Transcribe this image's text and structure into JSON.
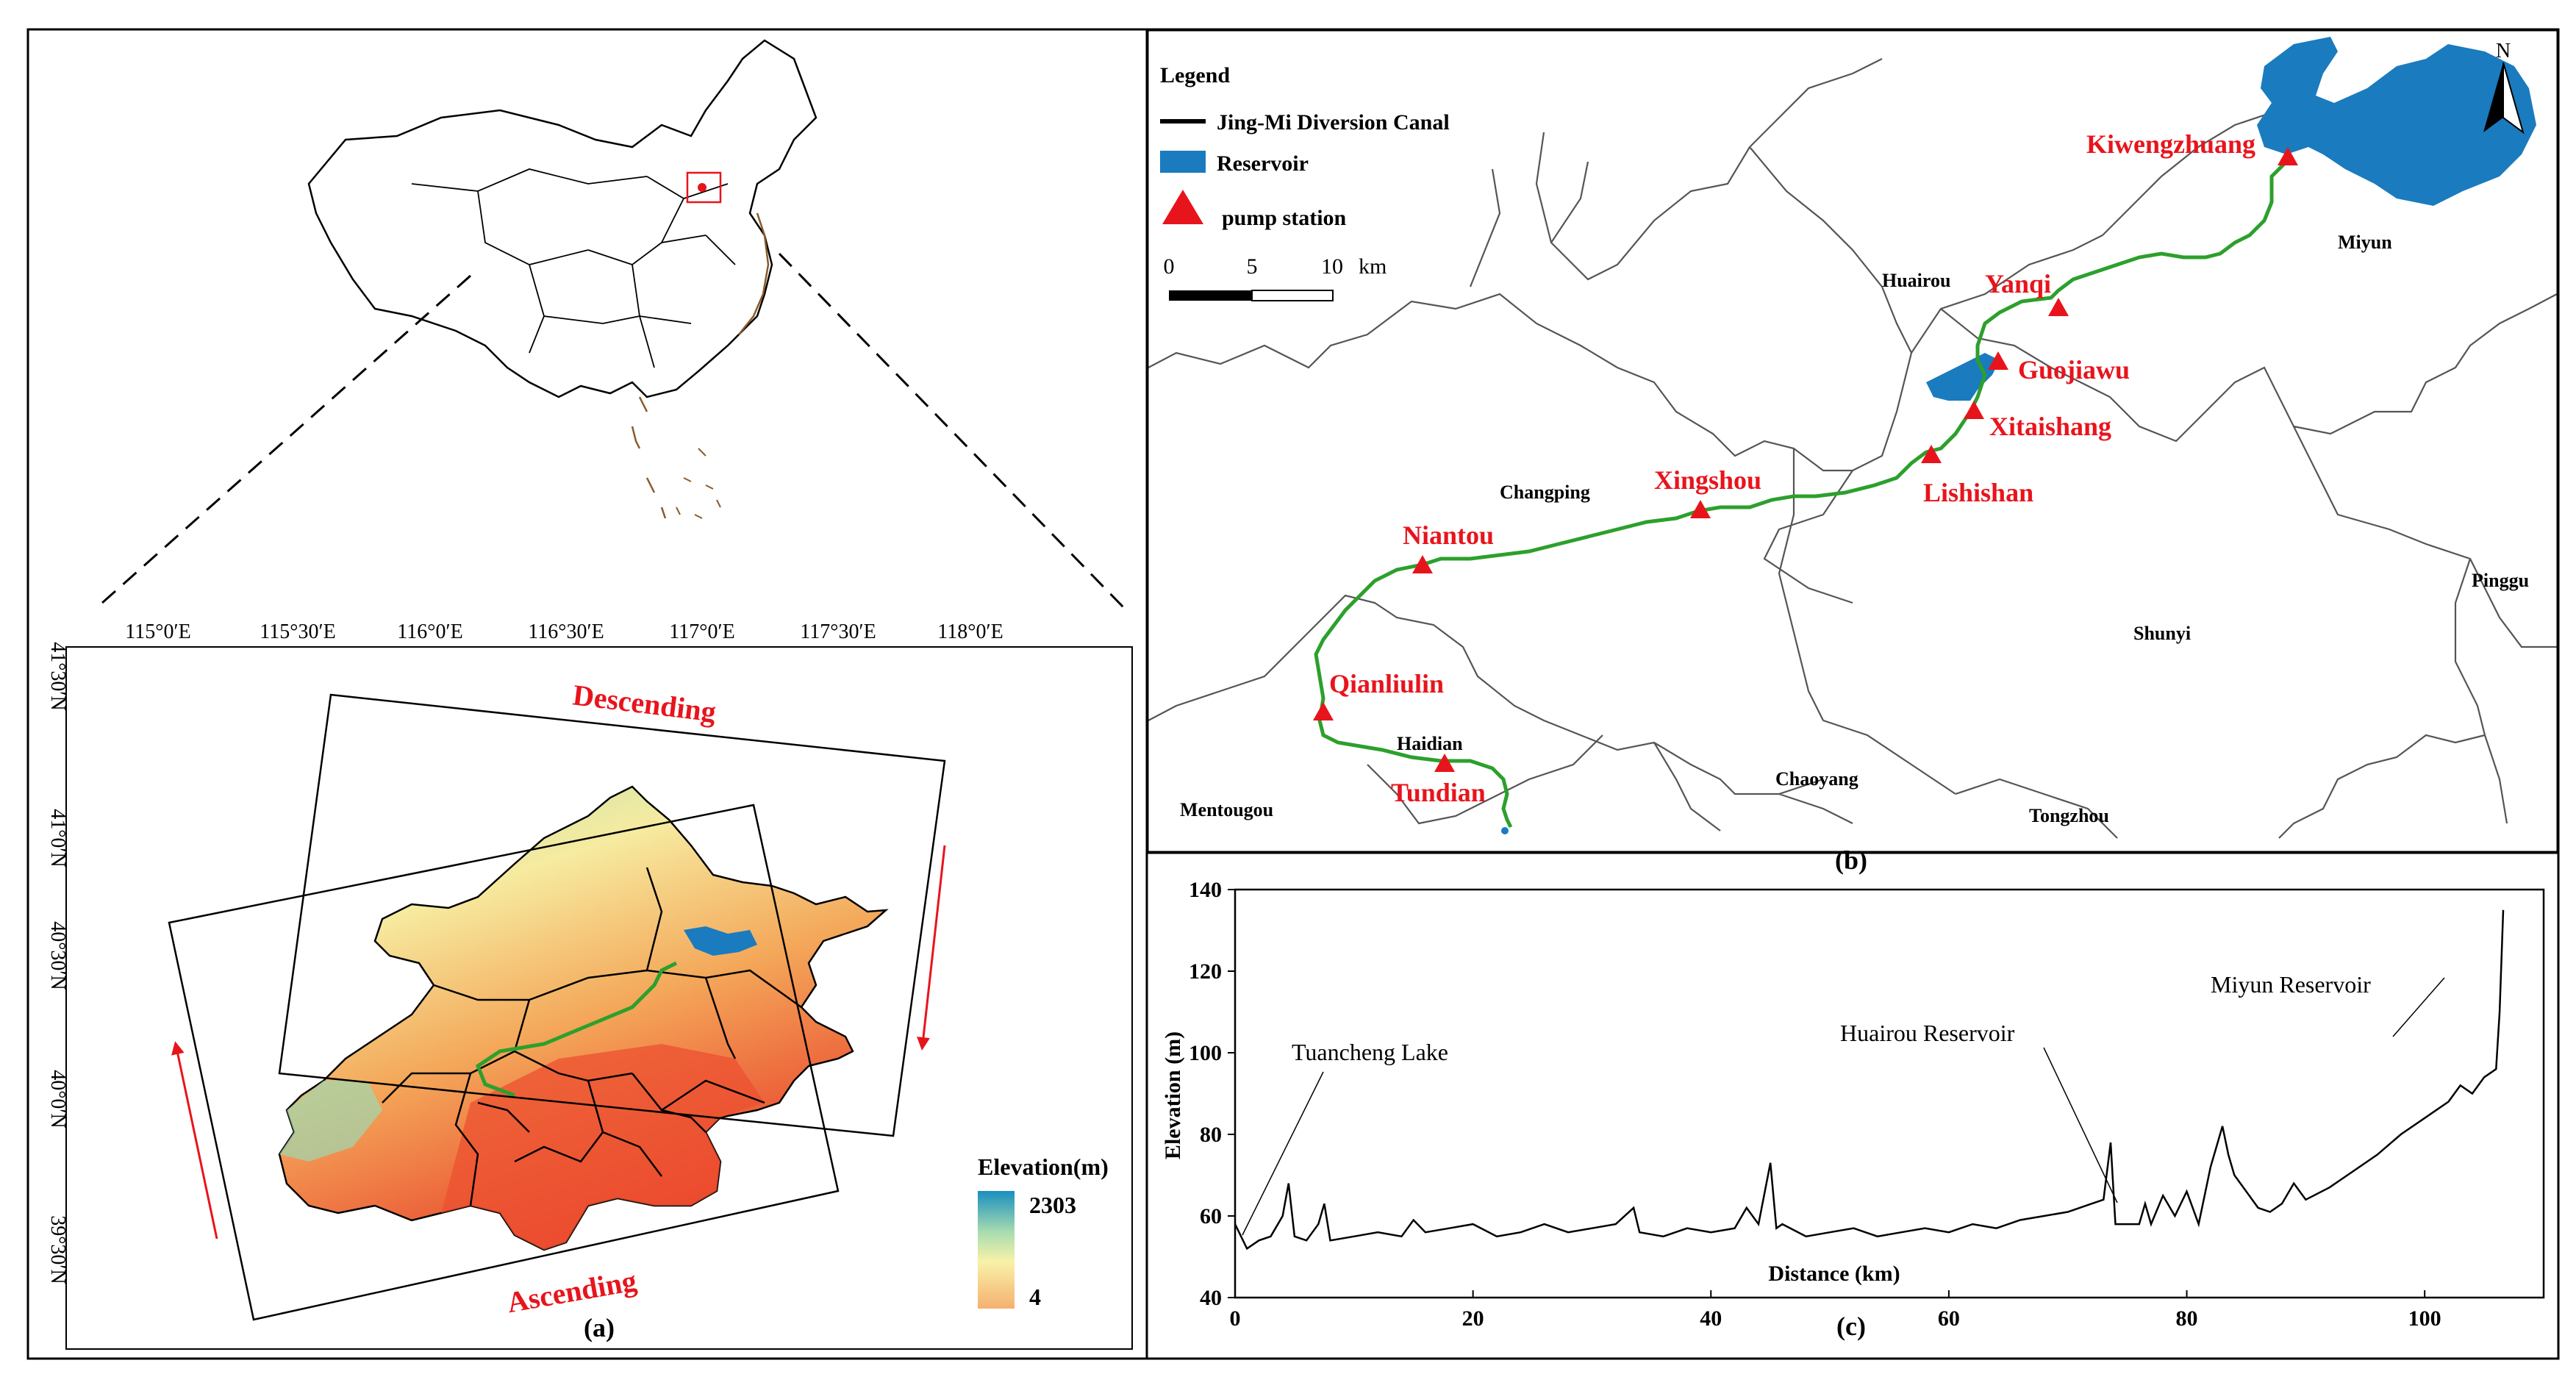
{
  "colors": {
    "canal": "#2ca02c",
    "reservoir": "#1a7bbf",
    "pump": "#e8141c",
    "label_red": "#e8141c",
    "swath_arrow": "#e8141c",
    "boundary": "#000000",
    "china_coast": "#8b5a2b",
    "elevation_high": "#1a8fbf",
    "elevation_low": "#f5b070",
    "elevation_mid": "#f8f2a8"
  },
  "panel_a": {
    "caption": "(a)",
    "lon_ticks": [
      "115°0′E",
      "115°30′E",
      "116°0′E",
      "116°30′E",
      "117°0′E",
      "117°30′E",
      "118°0′E"
    ],
    "lat_ticks": [
      "41°30′N",
      "41°0′N",
      "40°30′N",
      "40°0′N",
      "39°30′N"
    ],
    "descending_label": "Descending",
    "ascending_label": "Ascending",
    "colorbar": {
      "title": "Elevation(m)",
      "max_label": "2303",
      "min_label": "4"
    }
  },
  "panel_b": {
    "caption": "(b)",
    "legend": {
      "title": "Legend",
      "canal_label": "Jing-Mi Diversion Canal",
      "reservoir_label": "Reservoir",
      "pump_label": "pump station"
    },
    "scale_bar": {
      "ticks": [
        "0",
        "5",
        "10"
      ],
      "unit": "km"
    },
    "north_arrow_label": "N",
    "districts": [
      "Huairou",
      "Miyun",
      "Changping",
      "Shunyi",
      "Pinggu",
      "Haidian",
      "Chaoyang",
      "Mentougou",
      "Tongzhou"
    ],
    "pump_stations": [
      "Kiwengzhuang",
      "Yanqi",
      "Guojiawu",
      "Xitaishang",
      "Lishishan",
      "Xingshou",
      "Niantou",
      "Qianliulin",
      "Tundian"
    ]
  },
  "panel_c": {
    "caption": "(c)",
    "annotations": [
      "Tuancheng Lake",
      "Huairou Reservoir",
      "Miyun Reservoir"
    ]
  },
  "chart_data": {
    "type": "line",
    "title": "",
    "xlabel": "Distance (km)",
    "ylabel": "Elevation (m)",
    "xlim": [
      0,
      110
    ],
    "ylim": [
      40,
      140
    ],
    "x_ticks": [
      "0",
      "20",
      "40",
      "60",
      "80",
      "100"
    ],
    "y_ticks": [
      "40",
      "60",
      "80",
      "100",
      "120",
      "140"
    ],
    "grid": false,
    "series": [
      {
        "x": [
          0,
          1,
          2,
          3,
          4,
          4.5,
          5,
          6,
          7,
          7.5,
          8,
          10,
          12,
          14,
          15,
          16,
          18,
          20,
          22,
          24,
          26,
          28,
          30,
          32,
          33.5,
          34,
          36,
          38,
          40,
          42,
          43,
          44,
          45,
          45.5,
          46,
          48,
          50,
          52,
          54,
          56,
          58,
          60,
          62,
          64,
          66,
          68,
          70,
          72,
          73,
          73.6,
          74,
          76,
          76.5,
          77,
          78,
          79,
          80,
          81,
          82,
          83,
          83.5,
          84,
          85,
          86,
          87,
          88,
          89,
          90,
          92,
          94,
          96,
          98,
          100,
          102,
          103,
          104,
          105,
          106,
          106.3,
          106.6
        ],
        "values": [
          58,
          52,
          54,
          55,
          60,
          68,
          55,
          54,
          58,
          63,
          54,
          55,
          56,
          55,
          59,
          56,
          57,
          58,
          55,
          56,
          58,
          56,
          57,
          58,
          62,
          56,
          55,
          57,
          56,
          57,
          62,
          58,
          73,
          57,
          58,
          55,
          56,
          57,
          55,
          56,
          57,
          56,
          58,
          57,
          59,
          60,
          61,
          63,
          64,
          78,
          58,
          58,
          63,
          58,
          65,
          60,
          66,
          58,
          72,
          82,
          75,
          70,
          66,
          62,
          61,
          63,
          68,
          64,
          67,
          71,
          75,
          80,
          84,
          88,
          92,
          90,
          94,
          96,
          110,
          135
        ]
      }
    ]
  }
}
